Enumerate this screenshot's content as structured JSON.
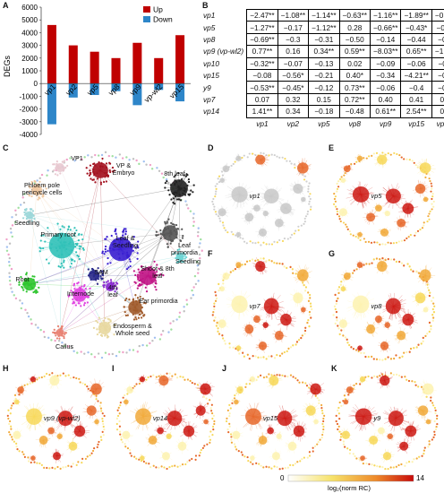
{
  "panels": {
    "A": "A",
    "B": "B",
    "C": "C",
    "D": "D",
    "E": "E",
    "F": "F",
    "G": "G",
    "H": "H",
    "I": "I",
    "J": "J",
    "K": "K"
  },
  "chart_data": {
    "type": "bar",
    "ylabel": "DEGs",
    "categories": [
      "vp1",
      "vp2",
      "vp5",
      "vp8",
      "vp9",
      "vp-wl2",
      "vp15"
    ],
    "ylim": [
      -4000,
      6000
    ],
    "yticks": [
      -4000,
      -3000,
      -2000,
      -1000,
      0,
      1000,
      2000,
      3000,
      4000,
      5000,
      6000
    ],
    "legend_position": "top-right",
    "series": [
      {
        "name": "Up",
        "color": "#c00000",
        "values": [
          4600,
          3000,
          2500,
          2000,
          3200,
          2000,
          3800
        ]
      },
      {
        "name": "Down",
        "color": "#2e86c9",
        "values": [
          -3200,
          -1100,
          -900,
          -600,
          -1700,
          -500,
          -1400
        ]
      }
    ]
  },
  "table_b": {
    "rows": [
      {
        "label": "vp1",
        "cells": [
          "−2.47**",
          "−1.08**",
          "−1.14**",
          "−0.63**",
          "−1.16**",
          "−1.89**",
          "−0.97**"
        ]
      },
      {
        "label": "vp5",
        "cells": [
          "−1.27**",
          "−0.17",
          "−1.12**",
          "0.28",
          "−0.66**",
          "−0.43*",
          "−0.39*"
        ]
      },
      {
        "label": "vp8",
        "cells": [
          "−0.69**",
          "−0.3",
          "−0.31",
          "−0.50",
          "−0.14",
          "−0.44",
          "−0.16"
        ]
      },
      {
        "label": "vp9 (vp-wl2)",
        "cells": [
          "0.77**",
          "0.16",
          "0.34**",
          "0.59**",
          "−8.03**",
          "0.65**",
          "−1.25**"
        ]
      },
      {
        "label": "vp10",
        "cells": [
          "−0.32**",
          "−0.07",
          "−0.13",
          "0.02",
          "−0.09",
          "−0.06",
          "−0.11"
        ]
      },
      {
        "label": "vp15",
        "cells": [
          "−0.08",
          "−0.56*",
          "−0.21",
          "0.40*",
          "−0.34",
          "−4.21**",
          "−0.34"
        ]
      },
      {
        "label": "y9",
        "cells": [
          "−0.53**",
          "−0.45*",
          "−0.12",
          "0.73**",
          "−0.06",
          "−0.4",
          "−0.22"
        ]
      },
      {
        "label": "vp7",
        "cells": [
          "0.07",
          "0.32",
          "0.15",
          "0.72**",
          "0.40",
          "0.41",
          "0.36"
        ]
      },
      {
        "label": "vp14",
        "cells": [
          "1.41**",
          "0.34",
          "−0.18",
          "−0.48",
          "0.61**",
          "2.54**",
          "0.19"
        ]
      }
    ],
    "columns": [
      "vp1",
      "vp2",
      "vp5",
      "vp8",
      "vp9",
      "vp15",
      "vp-wl2"
    ]
  },
  "network_c": {
    "labels": [
      "VP1",
      "VP & Embryo",
      "8th leaf",
      "Phloem pole pericycle cells",
      "Seedling",
      "Leaf primordia",
      "Primary root",
      "Leaf & Seedling",
      "Seedling",
      "SAM",
      "Shoot & 8th leaf",
      "Root",
      "4th leaf",
      "Internode",
      "Ear primordia",
      "Endosperm & Whole seed",
      "Callus"
    ]
  },
  "small_networks": [
    {
      "panel": "D",
      "label": "vp1"
    },
    {
      "panel": "E",
      "label": "vp5"
    },
    {
      "panel": "F",
      "label": "vp7"
    },
    {
      "panel": "G",
      "label": "vp8"
    },
    {
      "panel": "H",
      "label": "vp9 (vp-wl2)"
    },
    {
      "panel": "I",
      "label": "vp14"
    },
    {
      "panel": "J",
      "label": "vp15"
    },
    {
      "panel": "K",
      "label": "y9"
    }
  ],
  "legend": {
    "min": "0",
    "max": "14",
    "label": "log₂(norm RC)"
  }
}
